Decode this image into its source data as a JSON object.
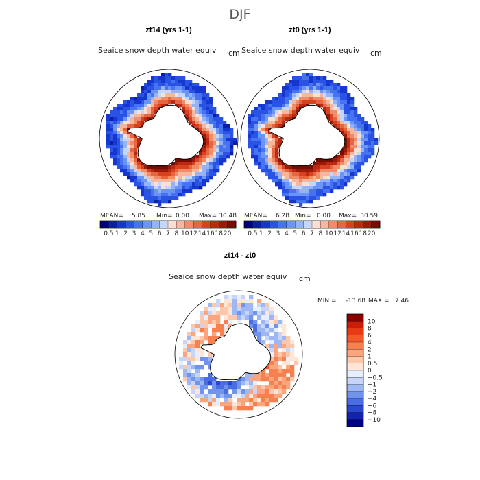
{
  "title": "DJF",
  "chart_data": [
    {
      "type": "heatmap",
      "title": "zt14 (yrs 1-1)",
      "variable": "Seaice snow depth water equiv",
      "units": "cm",
      "stats": {
        "mean_label": "MEAN=",
        "mean": "5.85",
        "min_label": "Min=",
        "min": "0.00",
        "max_label": "Max=",
        "max": "30.48"
      },
      "colorbar": {
        "levels": [
          "0.5",
          "1",
          "2",
          "3",
          "4",
          "5",
          "6",
          "7",
          "8",
          "10",
          "12",
          "14",
          "16",
          "18",
          "20"
        ],
        "colors": [
          "#00007f",
          "#0a1ea8",
          "#1537cf",
          "#2a53e6",
          "#4573f2",
          "#6a94f5",
          "#94b4f7",
          "#c4d6fa",
          "#fbe0d2",
          "#f6b79c",
          "#ef8c6a",
          "#e86542",
          "#d8421f",
          "#bb2912",
          "#981a08",
          "#750d03"
        ]
      },
      "mean_field": 5.85
    },
    {
      "type": "heatmap",
      "title": "zt0 (yrs 1-1)",
      "variable": "Seaice snow depth water equiv",
      "units": "cm",
      "stats": {
        "mean_label": "MEAN=",
        "mean": "6.28",
        "min_label": "Min=",
        "min": "0.00",
        "max_label": "Max=",
        "max": "30.59"
      },
      "colorbar": {
        "levels": [
          "0.5",
          "1",
          "2",
          "3",
          "4",
          "5",
          "6",
          "7",
          "8",
          "10",
          "12",
          "14",
          "16",
          "18",
          "20"
        ],
        "colors": [
          "#00007f",
          "#0a1ea8",
          "#1537cf",
          "#2a53e6",
          "#4573f2",
          "#6a94f5",
          "#94b4f7",
          "#c4d6fa",
          "#fbe0d2",
          "#f6b79c",
          "#ef8c6a",
          "#e86542",
          "#d8421f",
          "#bb2912",
          "#981a08",
          "#750d03"
        ]
      },
      "mean_field": 6.28
    },
    {
      "type": "heatmap",
      "title": "zt14 - zt0",
      "variable": "Seaice snow depth water equiv",
      "units": "cm",
      "stats": {
        "min_label": "MIN =",
        "min": "-13.68",
        "max_label": "MAX =",
        "max": "7.46"
      },
      "colorbar": {
        "levels": [
          "10",
          "8",
          "6",
          "4",
          "2",
          "1",
          "0.5",
          "0",
          "−0.5",
          "−1",
          "−2",
          "−4",
          "−6",
          "−8",
          "−10"
        ],
        "colors": [
          "#8b0000",
          "#c81e0a",
          "#e83a14",
          "#f25a2c",
          "#f7804f",
          "#fba57f",
          "#fdc7ab",
          "#fee5d6",
          "#e7eefc",
          "#c7d6f8",
          "#9cb7f3",
          "#7093ec",
          "#4a6ee2",
          "#2a47d2",
          "#1422b0",
          "#000084"
        ]
      }
    }
  ]
}
